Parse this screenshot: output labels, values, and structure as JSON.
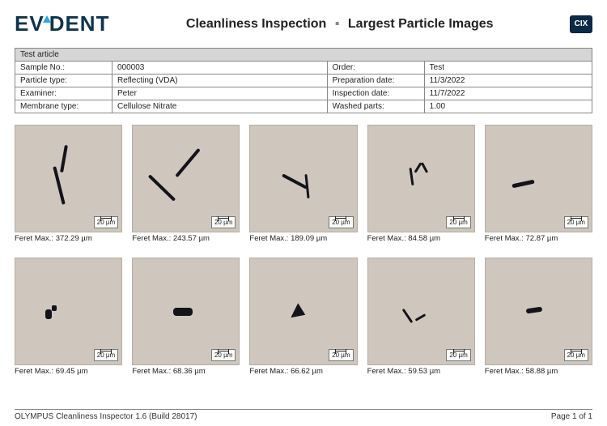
{
  "header": {
    "logo_text_1": "EV",
    "logo_text_2": "DENT",
    "title_left": "Cleanliness Inspection",
    "title_right": "Largest Particle Images",
    "cix_label": "CIX"
  },
  "meta": {
    "section_header": "Test article",
    "rows": [
      {
        "k1": "Sample No.:",
        "v1": "000003",
        "k2": "Order:",
        "v2": "Test"
      },
      {
        "k1": "Particle type:",
        "v1": "Reflecting (VDA)",
        "k2": "Preparation date:",
        "v2": "11/3/2022"
      },
      {
        "k1": "Examiner:",
        "v1": "Peter",
        "k2": "Inspection date:",
        "v2": "11/7/2022"
      },
      {
        "k1": "Membrane type:",
        "v1": "Cellulose Nitrate",
        "k2": "Washed parts:",
        "v2": "1.00"
      }
    ]
  },
  "scale_label": "20 µm",
  "caption_prefix": "Feret Max.: ",
  "tiles": [
    {
      "value": "372.29 µm"
    },
    {
      "value": "243.57 µm"
    },
    {
      "value": "189.09 µm"
    },
    {
      "value": "84.58 µm"
    },
    {
      "value": "72.87 µm"
    },
    {
      "value": "69.45 µm"
    },
    {
      "value": "68.36 µm"
    },
    {
      "value": "66.62 µm"
    },
    {
      "value": "59.53 µm"
    },
    {
      "value": "58.88 µm"
    }
  ],
  "footer": {
    "left": "OLYMPUS Cleanliness Inspector 1.6 (Build 28017)",
    "right": "Page 1 of 1"
  },
  "colors": {
    "thumb_bg": "#cfc7bd",
    "particle": "#13131a",
    "logo_blue": "#0f344d",
    "logo_triangle": "#2aa8e0",
    "cix_bg": "#0b2a47"
  }
}
